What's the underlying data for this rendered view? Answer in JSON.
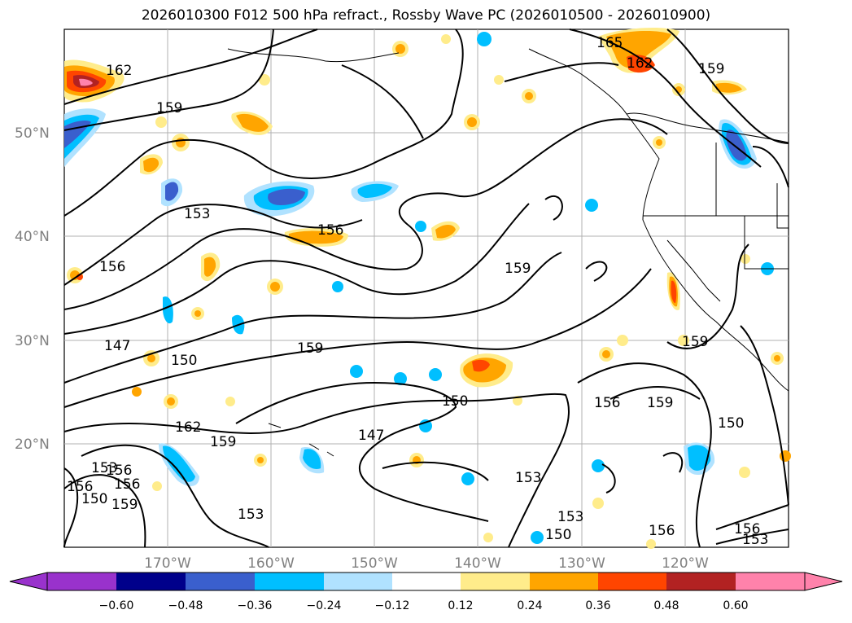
{
  "title": "2026010300 F012 500 hPa refract., Rossby Wave PC (2026010500 - 2026010900)",
  "map": {
    "lat_labels": [
      "50°N",
      "40°N",
      "30°N",
      "20°N"
    ],
    "lon_labels": [
      "170°W",
      "160°W",
      "150°W",
      "140°W",
      "130°W",
      "120°W"
    ],
    "lat_range": [
      10,
      60
    ],
    "lon_range": [
      -180,
      -110
    ],
    "gridlines": true,
    "contour_labels": [
      "162",
      "159",
      "153",
      "156",
      "156",
      "159",
      "147",
      "150",
      "159",
      "150",
      "162",
      "159",
      "147",
      "156",
      "153",
      "156",
      "156",
      "159",
      "150",
      "153",
      "159",
      "156",
      "153",
      "150",
      "153",
      "150",
      "156",
      "159",
      "165",
      "162",
      "159",
      "156",
      "153"
    ]
  },
  "colorbar": {
    "tick_labels": [
      "−0.60",
      "−0.48",
      "−0.36",
      "−0.24",
      "−0.12",
      "0.12",
      "0.24",
      "0.36",
      "0.48",
      "0.60"
    ],
    "colors": [
      "#9932cc",
      "#00008b",
      "#3a5fcd",
      "#00bfff",
      "#b0e2ff",
      "#ffffff",
      "#ffec8b",
      "#ffa500",
      "#ff4500",
      "#b22222",
      "#ff82ab"
    ],
    "extend": "both"
  }
}
